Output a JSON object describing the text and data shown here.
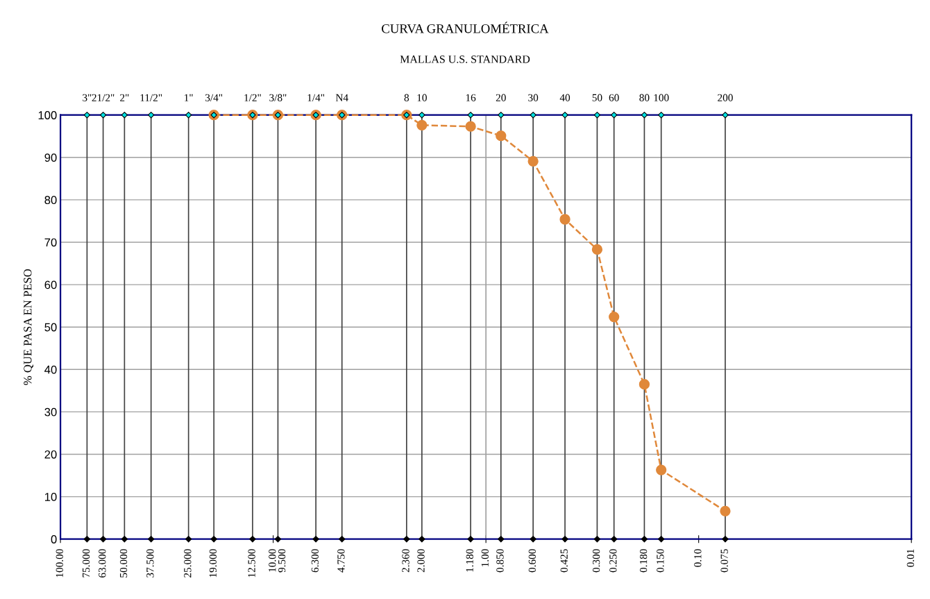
{
  "chart_data": {
    "type": "line",
    "title": "CURVA GRANULOMÉTRICA",
    "subtitle": "MALLAS U.S. STANDARD",
    "ylabel": "% QUE PASA EN PESO",
    "log": "x",
    "xlim": [
      100,
      0.01
    ],
    "ylim": [
      0,
      100
    ],
    "yticks": [
      0,
      10,
      20,
      30,
      40,
      50,
      60,
      70,
      80,
      90,
      100
    ],
    "grid": "y",
    "xticks": [
      {
        "value": 100,
        "label": "100.00"
      },
      {
        "value": 10,
        "label": "10.00"
      },
      {
        "value": 1,
        "label": "1.00"
      },
      {
        "value": 0.1,
        "label": "0.10"
      },
      {
        "value": 0.01,
        "label": "0.01"
      },
      {
        "value": 75,
        "label": "75.000"
      },
      {
        "value": 63,
        "label": "63.000"
      },
      {
        "value": 50,
        "label": "50.000"
      },
      {
        "value": 37.5,
        "label": "37.500"
      },
      {
        "value": 25,
        "label": "25.000"
      },
      {
        "value": 19,
        "label": "19.000"
      },
      {
        "value": 12.5,
        "label": "12.500"
      },
      {
        "value": 9.5,
        "label": "9.500"
      },
      {
        "value": 6.3,
        "label": "6.300"
      },
      {
        "value": 4.75,
        "label": "4.750"
      },
      {
        "value": 2.36,
        "label": "2.360"
      },
      {
        "value": 2.0,
        "label": "2.000"
      },
      {
        "value": 1.18,
        "label": "1.180"
      },
      {
        "value": 0.85,
        "label": "0.850"
      },
      {
        "value": 0.6,
        "label": "0.600"
      },
      {
        "value": 0.425,
        "label": "0.425"
      },
      {
        "value": 0.3,
        "label": "0.300"
      },
      {
        "value": 0.25,
        "label": "0.250"
      },
      {
        "value": 0.18,
        "label": "0.180"
      },
      {
        "value": 0.15,
        "label": "0.150"
      },
      {
        "value": 0.075,
        "label": "0.075"
      }
    ],
    "annotations": [
      {
        "text": "3\"",
        "x": 75,
        "y": 100
      },
      {
        "text": "21/2\"",
        "x": 63,
        "y": 100
      },
      {
        "text": "2\"",
        "x": 50,
        "y": 100
      },
      {
        "text": "11/2\"",
        "x": 37.5,
        "y": 100
      },
      {
        "text": "1\"",
        "x": 25,
        "y": 100
      },
      {
        "text": "3/4\"",
        "x": 19,
        "y": 100
      },
      {
        "text": "1/2\"",
        "x": 12.5,
        "y": 100
      },
      {
        "text": "3/8\"",
        "x": 9.5,
        "y": 100
      },
      {
        "text": "1/4\"",
        "x": 6.3,
        "y": 100
      },
      {
        "text": "N4",
        "x": 4.75,
        "y": 100
      },
      {
        "text": "8",
        "x": 2.36,
        "y": 100
      },
      {
        "text": "10",
        "x": 2.0,
        "y": 100
      },
      {
        "text": "16",
        "x": 1.18,
        "y": 100
      },
      {
        "text": "20",
        "x": 0.85,
        "y": 100
      },
      {
        "text": "30",
        "x": 0.6,
        "y": 100
      },
      {
        "text": "40",
        "x": 0.425,
        "y": 100
      },
      {
        "text": "50",
        "x": 0.3,
        "y": 100
      },
      {
        "text": "60",
        "x": 0.25,
        "y": 100
      },
      {
        "text": "80",
        "x": 0.18,
        "y": 100
      },
      {
        "text": "100",
        "x": 0.15,
        "y": 100
      },
      {
        "text": "200",
        "x": 0.075,
        "y": 100
      }
    ],
    "ref_lines": [
      {
        "axis": "x",
        "value": 75,
        "color": "#404040"
      },
      {
        "axis": "x",
        "value": 63,
        "color": "#404040"
      },
      {
        "axis": "x",
        "value": 50,
        "color": "#404040"
      },
      {
        "axis": "x",
        "value": 37.5,
        "color": "#404040"
      },
      {
        "axis": "x",
        "value": 25,
        "color": "#404040"
      },
      {
        "axis": "x",
        "value": 19,
        "color": "#404040"
      },
      {
        "axis": "x",
        "value": 12.5,
        "color": "#404040"
      },
      {
        "axis": "x",
        "value": 9.5,
        "color": "#404040"
      },
      {
        "axis": "x",
        "value": 6.3,
        "color": "#404040"
      },
      {
        "axis": "x",
        "value": 4.75,
        "color": "#404040"
      },
      {
        "axis": "x",
        "value": 2.36,
        "color": "#404040"
      },
      {
        "axis": "x",
        "value": 2.0,
        "color": "#404040"
      },
      {
        "axis": "x",
        "value": 1.18,
        "color": "#404040"
      },
      {
        "axis": "x",
        "value": 1,
        "color": "#a0a0a0"
      },
      {
        "axis": "x",
        "value": 0.85,
        "color": "#404040"
      },
      {
        "axis": "x",
        "value": 0.6,
        "color": "#404040"
      },
      {
        "axis": "x",
        "value": 0.425,
        "color": "#404040"
      },
      {
        "axis": "x",
        "value": 0.3,
        "color": "#404040"
      },
      {
        "axis": "x",
        "value": 0.25,
        "color": "#404040"
      },
      {
        "axis": "x",
        "value": 0.18,
        "color": "#404040"
      },
      {
        "axis": "x",
        "value": 0.15,
        "color": "#404040"
      },
      {
        "axis": "x",
        "value": 0.075,
        "color": "#404040"
      }
    ],
    "series": [
      {
        "type": "scatter",
        "marker": "diamond",
        "color": "#00e0e0",
        "x": [
          75,
          63,
          50,
          37.5,
          25,
          19,
          12.5,
          9.5,
          6.3,
          4.75,
          2.36,
          2.0,
          1.18,
          0.85,
          0.6,
          0.425,
          0.3,
          0.25,
          0.18,
          0.15,
          0.075
        ],
        "values": [
          100,
          100,
          100,
          100,
          100,
          100,
          100,
          100,
          100,
          100,
          100,
          100,
          100,
          100,
          100,
          100,
          100,
          100,
          100,
          100,
          100
        ]
      },
      {
        "type": "scatter",
        "marker": "diamond",
        "color": "#000000",
        "x": [
          75,
          63,
          50,
          37.5,
          25,
          19,
          12.5,
          9.5,
          6.3,
          4.75,
          2.36,
          2.0,
          1.18,
          0.85,
          0.6,
          0.425,
          0.3,
          0.25,
          0.18,
          0.15,
          0.075
        ],
        "values": [
          0,
          0,
          0,
          0,
          0,
          0,
          0,
          0,
          0,
          0,
          0,
          0,
          0,
          0,
          0,
          0,
          0,
          0,
          0,
          0,
          0
        ]
      },
      {
        "marker": "circle",
        "line_style": "dashed",
        "color": "#e0883a",
        "x": [
          19,
          12.5,
          9.5,
          6.3,
          4.75,
          2.36,
          2.0,
          1.18,
          0.85,
          0.6,
          0.425,
          0.3,
          0.25,
          0.18,
          0.15,
          0.075
        ],
        "values": [
          100,
          100,
          100,
          100,
          100,
          100,
          97.6,
          97.3,
          95.1,
          89.1,
          75.4,
          68.3,
          52.4,
          36.5,
          16.3,
          6.6
        ]
      }
    ]
  }
}
